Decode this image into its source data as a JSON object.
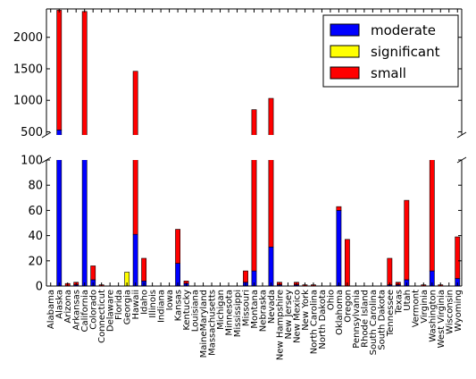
{
  "chart_data": {
    "type": "bar",
    "stacked": true,
    "broken_y_axis": true,
    "title": "",
    "xlabel": "",
    "ylabel": "",
    "upper_ylim": [
      450,
      2450
    ],
    "upper_yticks": [
      "500",
      "1000",
      "1500",
      "2000"
    ],
    "lower_ylim": [
      0,
      100
    ],
    "lower_yticks": [
      "0",
      "20",
      "40",
      "60",
      "80",
      "100"
    ],
    "legend_position": "top-right",
    "categories": [
      "Alabama",
      "Alaska",
      "Arizona",
      "Arkansas",
      "California",
      "Colorado",
      "Connecticut",
      "Delaware",
      "Florida",
      "Georgia",
      "Hawaii",
      "Idaho",
      "Illinois",
      "Indiana",
      "Iowa",
      "Kansas",
      "Kentucky",
      "Louisiana",
      "MaineMaryland",
      "Massachusetts",
      "Michigan",
      "Minnesota",
      "Mississippi",
      "Missouri",
      "Montana",
      "Nebraska",
      "Nevada",
      "New Hampshire",
      "New Jersey",
      "New Mexico",
      "New York",
      "North Carolina",
      "North Dakota",
      "Ohio",
      "Oklahoma",
      "Oregon",
      "Pennsylvania",
      "Rhode Island",
      "South Carolina",
      "South Dakota",
      "Tennessee",
      "Texas",
      "Utah",
      "Vermont",
      "Virginia",
      "Washington",
      "West Virginia",
      "Wisconsin",
      "Wyoming"
    ],
    "series": [
      {
        "name": "moderate",
        "color": "#0000ff",
        "values": [
          0,
          530,
          0,
          1,
          120,
          5,
          0,
          0,
          0,
          0,
          41,
          4,
          0,
          0,
          0,
          18,
          2,
          0,
          0,
          0,
          0,
          0,
          0,
          3,
          12,
          0,
          31,
          1,
          0,
          1,
          0,
          0,
          0,
          0,
          60,
          0,
          0,
          0,
          0,
          0,
          1,
          1,
          5,
          0,
          0,
          12,
          0,
          0,
          6
        ]
      },
      {
        "name": "significant",
        "color": "#ffff00",
        "values": [
          0,
          0,
          0,
          0,
          0,
          0,
          0,
          0,
          0,
          11,
          0,
          0,
          0,
          0,
          0,
          0,
          0,
          0,
          0,
          0,
          0,
          0,
          0,
          0,
          0,
          0,
          0,
          0,
          0,
          0,
          0,
          0,
          0,
          0,
          0,
          0,
          0,
          0,
          0,
          0,
          0,
          0,
          0,
          0,
          0,
          0,
          0,
          0,
          0
        ]
      },
      {
        "name": "small",
        "color": "#ff0000",
        "values": [
          0,
          1900,
          2,
          2,
          2290,
          11,
          1,
          0,
          0,
          0,
          1420,
          18,
          0,
          0,
          0,
          27,
          2,
          0,
          0,
          0,
          0,
          0,
          0,
          9,
          840,
          0,
          1000,
          2,
          0,
          2,
          1,
          1,
          0,
          0,
          3,
          37,
          0,
          0,
          0,
          0,
          21,
          2,
          63,
          0,
          1,
          205,
          1,
          0,
          33
        ]
      }
    ]
  }
}
